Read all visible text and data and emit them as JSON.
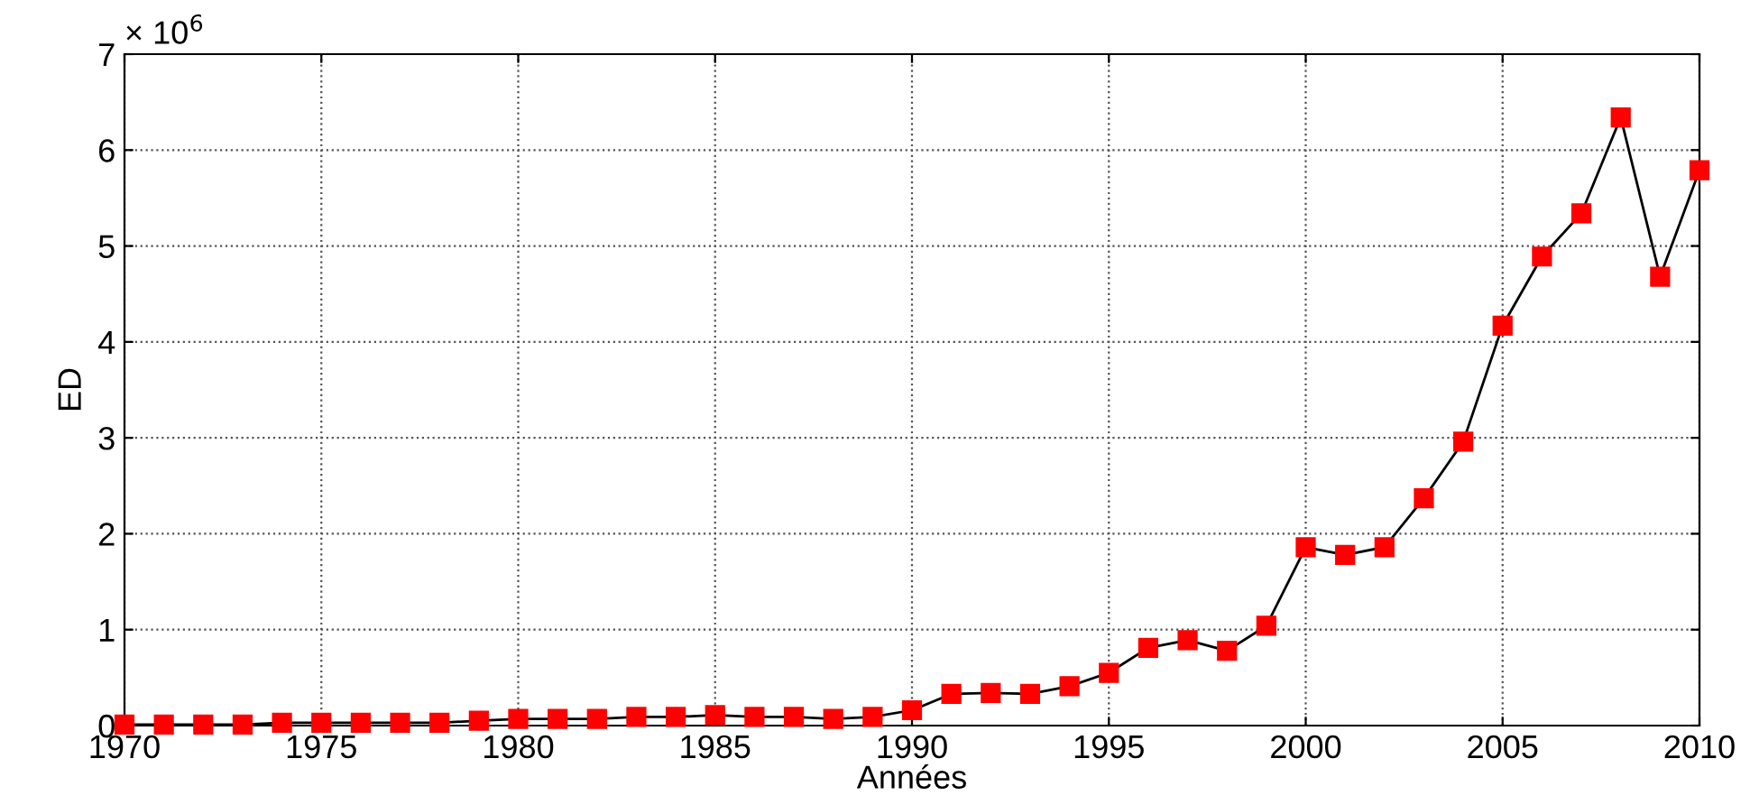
{
  "chart_data": {
    "type": "line",
    "xlabel": "Années",
    "ylabel": "ED",
    "annotations": [
      "× 10$^{6}$"
    ],
    "x": [
      1970,
      1971,
      1972,
      1973,
      1974,
      1975,
      1976,
      1977,
      1978,
      1979,
      1980,
      1981,
      1982,
      1983,
      1984,
      1985,
      1986,
      1987,
      1988,
      1989,
      1990,
      1991,
      1992,
      1993,
      1994,
      1995,
      1996,
      1997,
      1998,
      1999,
      2000,
      2001,
      2002,
      2003,
      2004,
      2005,
      2006,
      2007,
      2008,
      2009,
      2010
    ],
    "series": [
      {
        "color": "#ff0000",
        "values": [
          0.01,
          0.01,
          0.01,
          0.01,
          0.03,
          0.03,
          0.03,
          0.03,
          0.03,
          0.05,
          0.07,
          0.07,
          0.07,
          0.09,
          0.09,
          0.11,
          0.09,
          0.09,
          0.07,
          0.09,
          0.16,
          0.33,
          0.34,
          0.33,
          0.41,
          0.55,
          0.81,
          0.89,
          0.78,
          1.04,
          1.86,
          1.78,
          1.86,
          2.37,
          2.96,
          4.17,
          4.89,
          5.34,
          6.34,
          4.68,
          5.79
        ]
      }
    ],
    "xlim": [
      1970,
      2010
    ],
    "xticks": [
      1970,
      1975,
      1980,
      1985,
      1990,
      1995,
      2000,
      2005,
      2010
    ],
    "ylim": [
      0,
      7
    ],
    "yticks": [
      0,
      1,
      2,
      3,
      4,
      5,
      6,
      7
    ],
    "grid": true,
    "marker": "square",
    "line_style": "solid"
  }
}
